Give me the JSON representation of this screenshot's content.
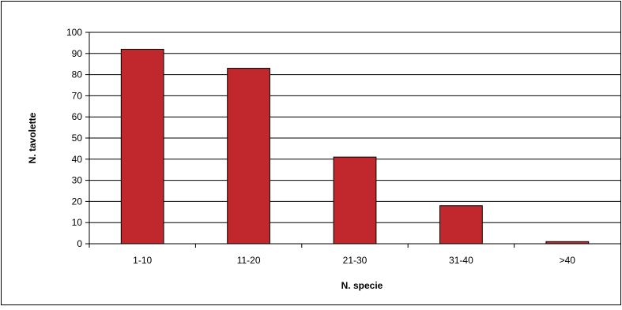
{
  "chart_data": {
    "type": "bar",
    "title": "",
    "xlabel": "N. specie",
    "ylabel": "N. tavolette",
    "categories": [
      "1-10",
      "11-20",
      "21-30",
      "31-40",
      ">40"
    ],
    "values": [
      92,
      83,
      41,
      18,
      1
    ],
    "ylim": [
      0,
      100
    ],
    "yticks": [
      0,
      10,
      20,
      30,
      40,
      50,
      60,
      70,
      80,
      90,
      100
    ],
    "grid": true,
    "legend": "none",
    "bar_color": "#c0282d",
    "bar_edge_color": "#000000",
    "gridline_color": "#000000"
  }
}
